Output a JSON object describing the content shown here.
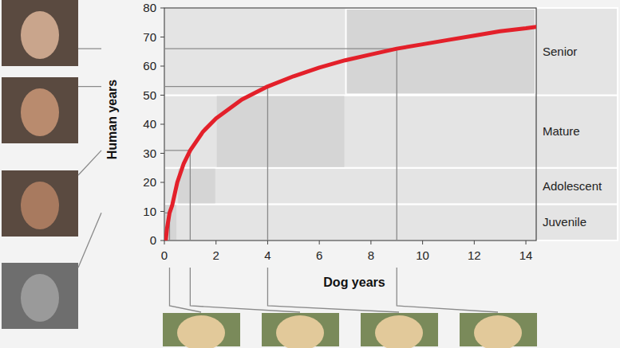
{
  "chart_data": {
    "type": "line",
    "x_label": "Dog years",
    "y_label": "Human years",
    "x": [
      0.06,
      0.1,
      0.2,
      0.3,
      0.5,
      0.75,
      1,
      1.5,
      2,
      3,
      4,
      5,
      6,
      7,
      8,
      9,
      10,
      11,
      12,
      13,
      14,
      14.4
    ],
    "series": [
      {
        "color": "#e3202a",
        "line_style": "solid",
        "values": [
          0.5,
          4,
          9.5,
          12,
          20,
          26.5,
          31,
          37.5,
          42,
          48.5,
          53,
          56.5,
          59.5,
          62,
          64,
          66,
          67.5,
          69,
          70.5,
          72,
          73,
          73.5
        ]
      }
    ],
    "xlim": [
      0,
      14.4
    ],
    "xticks": [
      0,
      2,
      4,
      6,
      8,
      10,
      12,
      14
    ],
    "ylim": [
      0,
      80
    ],
    "yticks": [
      0,
      10,
      20,
      30,
      40,
      50,
      60,
      70,
      80
    ],
    "grid": false,
    "stages": [
      {
        "label": "Juvenile",
        "x": [
          0,
          0.5
        ],
        "y": [
          0,
          12.5
        ]
      },
      {
        "label": "Adolescent",
        "x": [
          0.5,
          2
        ],
        "y": [
          12.5,
          25
        ]
      },
      {
        "label": "Mature",
        "x": [
          2,
          7
        ],
        "y": [
          25,
          50
        ]
      },
      {
        "label": "Senior",
        "x": [
          7,
          14.4
        ],
        "y": [
          50,
          80
        ]
      }
    ],
    "annotations": [
      {
        "x": 0.2,
        "y": 9.5
      },
      {
        "x": 1,
        "y": 31
      },
      {
        "x": 4,
        "y": 53
      },
      {
        "x": 9,
        "y": 66
      }
    ]
  }
}
